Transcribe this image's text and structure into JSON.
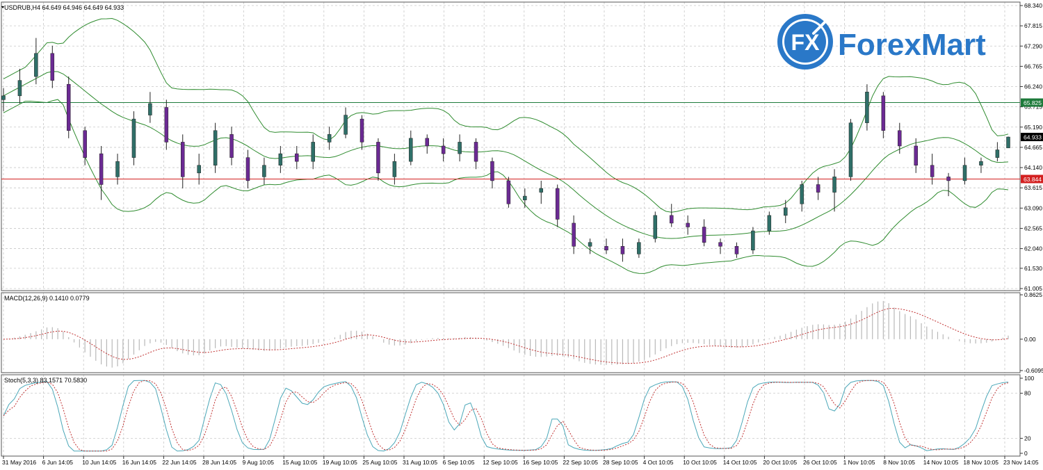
{
  "symbol_header": "USDRUB,H4  64.649 64.946 64.649 64.933",
  "macd_header": "MACD(12,26,9) 0.1410 0.0779",
  "stoch_header": "Stoch(5,3,3) 83.1571 70.5830",
  "logo": {
    "badge": "FX",
    "text": "ForexMart"
  },
  "colors": {
    "bull_fill": "#2f6f68",
    "bear_fill": "#6b2a93",
    "bollinger": "#2e8b2e",
    "hline_green": "#1d7a3a",
    "hline_red": "#d32020",
    "macd_signal": "#c03030",
    "macd_hist": "#b8b8b8",
    "stoch_main": "#4aa7b8",
    "stoch_signal": "#c03030",
    "logo_blue": "#2a78c8",
    "grid": "#c8c8c8"
  },
  "price_axis": {
    "min": 61.005,
    "max": 68.34,
    "ticks": [
      "68.340",
      "67.815",
      "67.290",
      "66.765",
      "66.240",
      "65.715",
      "65.190",
      "64.665",
      "64.140",
      "63.615",
      "63.090",
      "62.565",
      "62.040",
      "61.530",
      "61.005"
    ],
    "markers": [
      {
        "label": "65.825",
        "value": 65.825,
        "role": "green-level"
      },
      {
        "label": "64.933",
        "value": 64.933,
        "role": "current-price"
      },
      {
        "label": "63.844",
        "value": 63.844,
        "role": "red-level"
      }
    ]
  },
  "macd_axis": {
    "min": -0.6095,
    "max": 0.8625,
    "ticks": [
      "0.8625",
      "0.00",
      "-0.6095"
    ]
  },
  "stoch_axis": {
    "min": 0,
    "max": 100,
    "ticks": [
      "100",
      "80",
      "20",
      "0"
    ]
  },
  "time_axis": [
    "31 May 2016",
    "6 Jun 14:05",
    "10 Jun 14:05",
    "16 Jun 14:05",
    "22 Jun 14:05",
    "28 Jun 14:05",
    "9 Aug 10:05",
    "15 Aug 10:05",
    "19 Aug 10:05",
    "25 Aug 10:05",
    "31 Aug 10:05",
    "6 Sep 10:05",
    "12 Sep 10:05",
    "16 Sep 10:05",
    "22 Sep 10:05",
    "28 Sep 10:05",
    "4 Oct 10:05",
    "10 Oct 10:05",
    "14 Oct 10:05",
    "20 Oct 10:05",
    "26 Oct 10:05",
    "1 Nov 10:05",
    "8 Nov 10:05",
    "14 Nov 10:05",
    "18 Nov 10:05",
    "23 Nov 14:05"
  ],
  "chart_data": {
    "type": "candlestick",
    "symbol": "USDRUB",
    "timeframe": "H4",
    "close_path": [
      [
        0,
        66.0
      ],
      [
        4,
        66.6
      ],
      [
        8,
        67.2
      ],
      [
        10,
        66.6
      ],
      [
        12,
        65.2
      ],
      [
        15,
        64.4
      ],
      [
        18,
        63.8
      ],
      [
        20,
        64.0
      ],
      [
        23,
        65.4
      ],
      [
        26,
        66.0
      ],
      [
        28,
        65.6
      ],
      [
        30,
        64.6
      ],
      [
        32,
        64.0
      ],
      [
        34,
        64.1
      ],
      [
        36,
        64.3
      ],
      [
        38,
        65.1
      ],
      [
        40,
        65.0
      ],
      [
        42,
        64.4
      ],
      [
        44,
        64.3
      ],
      [
        48,
        64.0
      ],
      [
        51,
        64.5
      ],
      [
        55,
        64.3
      ],
      [
        60,
        64.9
      ],
      [
        63,
        65.6
      ],
      [
        66,
        64.9
      ],
      [
        68,
        64.3
      ],
      [
        70,
        63.8
      ],
      [
        73,
        64.3
      ],
      [
        76,
        64.9
      ],
      [
        79,
        64.8
      ],
      [
        82,
        64.6
      ],
      [
        85,
        64.9
      ],
      [
        88,
        64.4
      ],
      [
        91,
        64.0
      ],
      [
        95,
        63.2
      ],
      [
        98,
        63.2
      ],
      [
        101,
        63.4
      ],
      [
        104,
        62.8
      ],
      [
        106,
        62.2
      ],
      [
        110,
        62.1
      ],
      [
        115,
        61.9
      ],
      [
        118,
        62.2
      ],
      [
        121,
        62.9
      ],
      [
        124,
        62.9
      ],
      [
        127,
        62.5
      ],
      [
        130,
        62.2
      ],
      [
        134,
        62.0
      ],
      [
        137,
        62.4
      ],
      [
        140,
        62.9
      ],
      [
        143,
        63.0
      ],
      [
        146,
        63.6
      ],
      [
        149,
        63.8
      ],
      [
        152,
        63.5
      ],
      [
        154,
        64.0
      ],
      [
        157,
        65.3
      ],
      [
        160,
        66.2
      ],
      [
        162,
        65.9
      ],
      [
        164,
        64.7
      ],
      [
        167,
        64.9
      ],
      [
        169,
        64.3
      ],
      [
        172,
        64.2
      ],
      [
        175,
        63.8
      ],
      [
        178,
        63.9
      ],
      [
        181,
        64.2
      ],
      [
        183,
        64.6
      ],
      [
        185,
        64.933
      ]
    ],
    "candles": [
      {
        "i": 0,
        "o": 65.9,
        "h": 66.2,
        "l": 65.6,
        "c": 66.0
      },
      {
        "i": 3,
        "o": 66.0,
        "h": 66.7,
        "l": 65.8,
        "c": 66.4
      },
      {
        "i": 6,
        "o": 66.5,
        "h": 67.5,
        "l": 66.3,
        "c": 67.1
      },
      {
        "i": 9,
        "o": 67.1,
        "h": 67.3,
        "l": 66.2,
        "c": 66.4
      },
      {
        "i": 12,
        "o": 66.3,
        "h": 66.5,
        "l": 64.9,
        "c": 65.1
      },
      {
        "i": 15,
        "o": 65.1,
        "h": 65.2,
        "l": 64.2,
        "c": 64.4
      },
      {
        "i": 18,
        "o": 64.5,
        "h": 64.7,
        "l": 63.3,
        "c": 63.7
      },
      {
        "i": 21,
        "o": 63.9,
        "h": 64.5,
        "l": 63.7,
        "c": 64.3
      },
      {
        "i": 24,
        "o": 64.4,
        "h": 65.6,
        "l": 64.2,
        "c": 65.4
      },
      {
        "i": 27,
        "o": 65.5,
        "h": 66.1,
        "l": 65.3,
        "c": 65.8
      },
      {
        "i": 30,
        "o": 65.7,
        "h": 65.9,
        "l": 64.6,
        "c": 64.8
      },
      {
        "i": 33,
        "o": 64.8,
        "h": 65.0,
        "l": 63.6,
        "c": 63.9
      },
      {
        "i": 36,
        "o": 64.0,
        "h": 64.5,
        "l": 63.7,
        "c": 64.2
      },
      {
        "i": 39,
        "o": 64.2,
        "h": 65.3,
        "l": 64.0,
        "c": 65.1
      },
      {
        "i": 42,
        "o": 65.0,
        "h": 65.2,
        "l": 64.2,
        "c": 64.4
      },
      {
        "i": 45,
        "o": 64.4,
        "h": 64.6,
        "l": 63.6,
        "c": 63.8
      },
      {
        "i": 48,
        "o": 63.9,
        "h": 64.4,
        "l": 63.7,
        "c": 64.2
      },
      {
        "i": 51,
        "o": 64.2,
        "h": 64.7,
        "l": 64.0,
        "c": 64.5
      },
      {
        "i": 54,
        "o": 64.5,
        "h": 64.7,
        "l": 64.1,
        "c": 64.3
      },
      {
        "i": 57,
        "o": 64.3,
        "h": 65.0,
        "l": 64.1,
        "c": 64.8
      },
      {
        "i": 60,
        "o": 64.8,
        "h": 65.2,
        "l": 64.6,
        "c": 65.0
      },
      {
        "i": 63,
        "o": 65.0,
        "h": 65.7,
        "l": 64.9,
        "c": 65.5
      },
      {
        "i": 66,
        "o": 65.4,
        "h": 65.5,
        "l": 64.6,
        "c": 64.8
      },
      {
        "i": 69,
        "o": 64.8,
        "h": 64.9,
        "l": 63.8,
        "c": 64.0
      },
      {
        "i": 72,
        "o": 63.9,
        "h": 64.5,
        "l": 63.7,
        "c": 64.3
      },
      {
        "i": 75,
        "o": 64.3,
        "h": 65.1,
        "l": 64.2,
        "c": 64.9
      },
      {
        "i": 78,
        "o": 64.9,
        "h": 65.0,
        "l": 64.5,
        "c": 64.7
      },
      {
        "i": 81,
        "o": 64.7,
        "h": 64.9,
        "l": 64.3,
        "c": 64.5
      },
      {
        "i": 84,
        "o": 64.5,
        "h": 65.0,
        "l": 64.3,
        "c": 64.8
      },
      {
        "i": 87,
        "o": 64.8,
        "h": 64.9,
        "l": 64.1,
        "c": 64.3
      },
      {
        "i": 90,
        "o": 64.3,
        "h": 64.4,
        "l": 63.6,
        "c": 63.8
      },
      {
        "i": 93,
        "o": 63.8,
        "h": 63.9,
        "l": 63.1,
        "c": 63.2
      },
      {
        "i": 96,
        "o": 63.3,
        "h": 63.6,
        "l": 63.1,
        "c": 63.4
      },
      {
        "i": 99,
        "o": 63.5,
        "h": 63.8,
        "l": 63.2,
        "c": 63.6
      },
      {
        "i": 102,
        "o": 63.6,
        "h": 63.7,
        "l": 62.6,
        "c": 62.8
      },
      {
        "i": 105,
        "o": 62.7,
        "h": 62.9,
        "l": 61.9,
        "c": 62.1
      },
      {
        "i": 108,
        "o": 62.1,
        "h": 62.3,
        "l": 61.9,
        "c": 62.2
      },
      {
        "i": 111,
        "o": 62.1,
        "h": 62.3,
        "l": 61.9,
        "c": 62.0
      },
      {
        "i": 114,
        "o": 62.1,
        "h": 62.3,
        "l": 61.7,
        "c": 61.9
      },
      {
        "i": 117,
        "o": 61.9,
        "h": 62.3,
        "l": 61.8,
        "c": 62.2
      },
      {
        "i": 120,
        "o": 62.3,
        "h": 63.0,
        "l": 62.2,
        "c": 62.9
      },
      {
        "i": 123,
        "o": 62.9,
        "h": 63.2,
        "l": 62.6,
        "c": 62.7
      },
      {
        "i": 126,
        "o": 62.7,
        "h": 62.9,
        "l": 62.4,
        "c": 62.6
      },
      {
        "i": 129,
        "o": 62.6,
        "h": 62.8,
        "l": 62.1,
        "c": 62.2
      },
      {
        "i": 132,
        "o": 62.2,
        "h": 62.3,
        "l": 61.9,
        "c": 62.1
      },
      {
        "i": 135,
        "o": 62.1,
        "h": 62.2,
        "l": 61.8,
        "c": 61.9
      },
      {
        "i": 138,
        "o": 62.0,
        "h": 62.6,
        "l": 61.9,
        "c": 62.5
      },
      {
        "i": 141,
        "o": 62.5,
        "h": 63.0,
        "l": 62.4,
        "c": 62.9
      },
      {
        "i": 144,
        "o": 62.9,
        "h": 63.3,
        "l": 62.7,
        "c": 63.1
      },
      {
        "i": 147,
        "o": 63.2,
        "h": 63.8,
        "l": 63.0,
        "c": 63.7
      },
      {
        "i": 150,
        "o": 63.7,
        "h": 63.9,
        "l": 63.3,
        "c": 63.5
      },
      {
        "i": 153,
        "o": 63.5,
        "h": 64.1,
        "l": 63.0,
        "c": 63.9
      },
      {
        "i": 156,
        "o": 63.9,
        "h": 65.4,
        "l": 63.8,
        "c": 65.3
      },
      {
        "i": 159,
        "o": 65.3,
        "h": 66.3,
        "l": 65.1,
        "c": 66.1
      },
      {
        "i": 162,
        "o": 66.0,
        "h": 66.1,
        "l": 64.9,
        "c": 65.1
      },
      {
        "i": 165,
        "o": 65.1,
        "h": 65.3,
        "l": 64.5,
        "c": 64.7
      },
      {
        "i": 168,
        "o": 64.7,
        "h": 64.9,
        "l": 64.0,
        "c": 64.2
      },
      {
        "i": 171,
        "o": 64.2,
        "h": 64.5,
        "l": 63.7,
        "c": 63.9
      },
      {
        "i": 174,
        "o": 63.9,
        "h": 64.0,
        "l": 63.4,
        "c": 63.8
      },
      {
        "i": 177,
        "o": 63.8,
        "h": 64.4,
        "l": 63.7,
        "c": 64.2
      },
      {
        "i": 180,
        "o": 64.2,
        "h": 64.4,
        "l": 64.0,
        "c": 64.3
      },
      {
        "i": 183,
        "o": 64.4,
        "h": 64.8,
        "l": 64.3,
        "c": 64.6
      },
      {
        "i": 185,
        "o": 64.649,
        "h": 64.946,
        "l": 64.649,
        "c": 64.933
      }
    ]
  }
}
